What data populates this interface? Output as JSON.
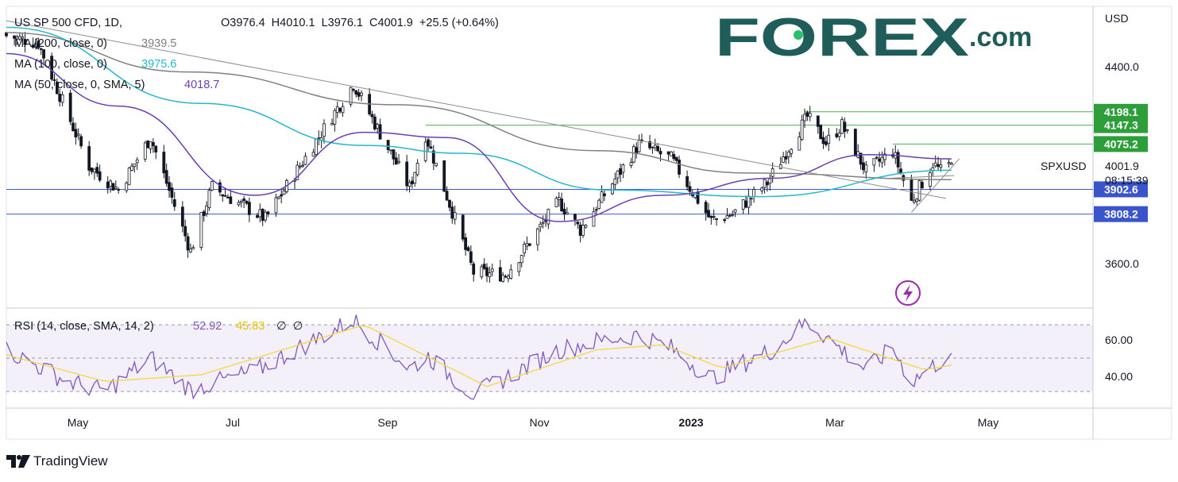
{
  "colors": {
    "up": "#131722",
    "down": "#131722",
    "ma200": "#808080",
    "ma100": "#22b8cf",
    "ma50": "#6a3fb5",
    "rsi": "#7e57c2",
    "rsi_sma": "#f5d742",
    "hline_blue": "#3d5ad6",
    "hline_green": "#4caf50",
    "badge_green": "#2e9e3a",
    "badge_blue": "#3a55cc",
    "forex_brand": "#1f5d5a",
    "forex_accent": "#28c06b",
    "trend_gray": "#8c8c8c"
  },
  "header": {
    "symbol": "US SP 500 CFD, 1D,",
    "ohlc": "O3976.4  H4010.1  L3976.1  C4001.9  +25.5 (+0.64%)"
  },
  "indicators": {
    "ma200_label": "MA (200, close, 0)",
    "ma200_value": "3939.5",
    "ma100_label": "MA (100, close, 0)",
    "ma100_value": "3975.6",
    "ma50_label": "MA (50, close, 0, SMA, 5)",
    "ma50_value": "4018.7",
    "rsi_label": "RSI (14, close, SMA, 14, 2)",
    "rsi_value": "52.92",
    "rsi_sma_value": "45.83",
    "rsi_extra": "∅  ∅"
  },
  "logo": {
    "text": "FOREX",
    "suffix": ".com"
  },
  "price_axis": {
    "currency": "USD",
    "ticks": [
      "4400.0",
      "3600.0"
    ],
    "rsi_ticks": [
      "60.00",
      "40.00"
    ],
    "current_symbol": "SPXUSD",
    "current_price": "4001.9",
    "countdown": "08:15:39"
  },
  "levels": [
    {
      "value": 4198.1,
      "label": "4198.1",
      "kind": "green"
    },
    {
      "value": 4147.3,
      "label": "4147.3",
      "kind": "green"
    },
    {
      "value": 4075.2,
      "label": "4075.2",
      "kind": "green"
    },
    {
      "value": 3902.6,
      "label": "3902.6",
      "kind": "blue"
    },
    {
      "value": 3808.2,
      "label": "3808.2",
      "kind": "blue"
    }
  ],
  "time_axis": {
    "labels": [
      "May",
      "Jul",
      "Sep",
      "Nov",
      "2023",
      "Mar",
      "May"
    ]
  },
  "footer": {
    "brand": "TradingView"
  },
  "chart_data": {
    "type": "candlestick",
    "title": "US SP 500 CFD, 1D",
    "ylabel": "USD",
    "ylim": [
      3450,
      4600
    ],
    "rsi_ylim": [
      20,
      80
    ],
    "rsi_bands": [
      70,
      50,
      30
    ],
    "x_range": [
      "2022-04-08",
      "2023-05-20"
    ],
    "anchors": [
      {
        "date": "2022-04-08",
        "close": 4488
      },
      {
        "date": "2022-04-20",
        "close": 4460
      },
      {
        "date": "2022-05-09",
        "close": 3991
      },
      {
        "date": "2022-05-20",
        "close": 3901
      },
      {
        "date": "2022-06-01",
        "close": 4101
      },
      {
        "date": "2022-06-16",
        "close": 3667
      },
      {
        "date": "2022-06-24",
        "close": 3911
      },
      {
        "date": "2022-07-14",
        "close": 3790
      },
      {
        "date": "2022-08-16",
        "close": 4305
      },
      {
        "date": "2022-09-06",
        "close": 3908
      },
      {
        "date": "2022-09-12",
        "close": 4110
      },
      {
        "date": "2022-09-30",
        "close": 3585
      },
      {
        "date": "2022-10-12",
        "close": 3577
      },
      {
        "date": "2022-11-01",
        "close": 3856
      },
      {
        "date": "2022-11-09",
        "close": 3748
      },
      {
        "date": "2022-12-01",
        "close": 4076
      },
      {
        "date": "2022-12-13",
        "close": 4019
      },
      {
        "date": "2022-12-28",
        "close": 3783
      },
      {
        "date": "2023-01-05",
        "close": 3808
      },
      {
        "date": "2023-01-18",
        "close": 3928
      },
      {
        "date": "2023-02-02",
        "close": 4179
      },
      {
        "date": "2023-02-09",
        "close": 4081
      },
      {
        "date": "2023-02-15",
        "close": 4147
      },
      {
        "date": "2023-02-24",
        "close": 3970
      },
      {
        "date": "2023-03-06",
        "close": 4048
      },
      {
        "date": "2023-03-13",
        "close": 3855
      },
      {
        "date": "2023-03-21",
        "close": 4002
      },
      {
        "date": "2023-03-24",
        "close": 3971
      },
      {
        "date": "2023-03-28",
        "close": 4001.9
      }
    ],
    "ma200_points": [
      {
        "date": "2022-04-08",
        "value": 4500
      },
      {
        "date": "2022-06-15",
        "value": 4350
      },
      {
        "date": "2022-09-01",
        "value": 4225
      },
      {
        "date": "2022-11-15",
        "value": 4050
      },
      {
        "date": "2023-01-10",
        "value": 3965
      },
      {
        "date": "2023-03-28",
        "value": 3939.5
      }
    ],
    "ma100_points": [
      {
        "date": "2022-04-08",
        "value": 4520
      },
      {
        "date": "2022-06-20",
        "value": 4230
      },
      {
        "date": "2022-08-20",
        "value": 4070
      },
      {
        "date": "2022-09-25",
        "value": 4040
      },
      {
        "date": "2022-11-20",
        "value": 3900
      },
      {
        "date": "2023-01-15",
        "value": 3875
      },
      {
        "date": "2023-03-28",
        "value": 3975.6
      }
    ],
    "ma50_points": [
      {
        "date": "2022-04-08",
        "value": 4420
      },
      {
        "date": "2022-05-20",
        "value": 4220
      },
      {
        "date": "2022-07-10",
        "value": 3880
      },
      {
        "date": "2022-08-20",
        "value": 4120
      },
      {
        "date": "2022-09-20",
        "value": 4100
      },
      {
        "date": "2022-11-01",
        "value": 3780
      },
      {
        "date": "2022-12-10",
        "value": 3880
      },
      {
        "date": "2023-01-20",
        "value": 3945
      },
      {
        "date": "2023-02-25",
        "value": 4035
      },
      {
        "date": "2023-03-28",
        "value": 4018.7
      }
    ],
    "trendlines": [
      {
        "from": {
          "date": "2022-04-08",
          "value": 4545
        },
        "to": {
          "date": "2023-03-26",
          "value": 3868
        }
      },
      {
        "from": {
          "date": "2023-03-13",
          "value": 3815
        },
        "to": {
          "date": "2023-03-31",
          "value": 4020
        }
      },
      {
        "from": {
          "date": "2023-03-05",
          "value": 3945
        },
        "to": {
          "date": "2023-03-29",
          "value": 3955
        }
      }
    ],
    "rsi_anchors": [
      {
        "date": "2022-04-08",
        "value": 55
      },
      {
        "date": "2022-05-01",
        "value": 36
      },
      {
        "date": "2022-05-15",
        "value": 30
      },
      {
        "date": "2022-06-01",
        "value": 50
      },
      {
        "date": "2022-06-16",
        "value": 31
      },
      {
        "date": "2022-07-10",
        "value": 42
      },
      {
        "date": "2022-08-16",
        "value": 73
      },
      {
        "date": "2022-09-06",
        "value": 44
      },
      {
        "date": "2022-09-13",
        "value": 51
      },
      {
        "date": "2022-09-30",
        "value": 28
      },
      {
        "date": "2022-11-01",
        "value": 55
      },
      {
        "date": "2022-11-15",
        "value": 60
      },
      {
        "date": "2022-12-01",
        "value": 64
      },
      {
        "date": "2022-12-13",
        "value": 56
      },
      {
        "date": "2022-12-28",
        "value": 38
      },
      {
        "date": "2023-01-20",
        "value": 55
      },
      {
        "date": "2023-02-02",
        "value": 72
      },
      {
        "date": "2023-02-24",
        "value": 43
      },
      {
        "date": "2023-03-06",
        "value": 56
      },
      {
        "date": "2023-03-13",
        "value": 36
      },
      {
        "date": "2023-03-28",
        "value": 52.92
      }
    ],
    "rsi_sma_anchors": [
      {
        "date": "2022-04-08",
        "value": 52
      },
      {
        "date": "2022-05-15",
        "value": 36
      },
      {
        "date": "2022-06-20",
        "value": 40
      },
      {
        "date": "2022-08-20",
        "value": 70
      },
      {
        "date": "2022-10-05",
        "value": 33
      },
      {
        "date": "2022-11-15",
        "value": 55
      },
      {
        "date": "2022-12-10",
        "value": 58
      },
      {
        "date": "2023-01-01",
        "value": 44
      },
      {
        "date": "2023-02-10",
        "value": 62
      },
      {
        "date": "2023-03-18",
        "value": 43
      },
      {
        "date": "2023-03-28",
        "value": 45.83
      }
    ]
  }
}
